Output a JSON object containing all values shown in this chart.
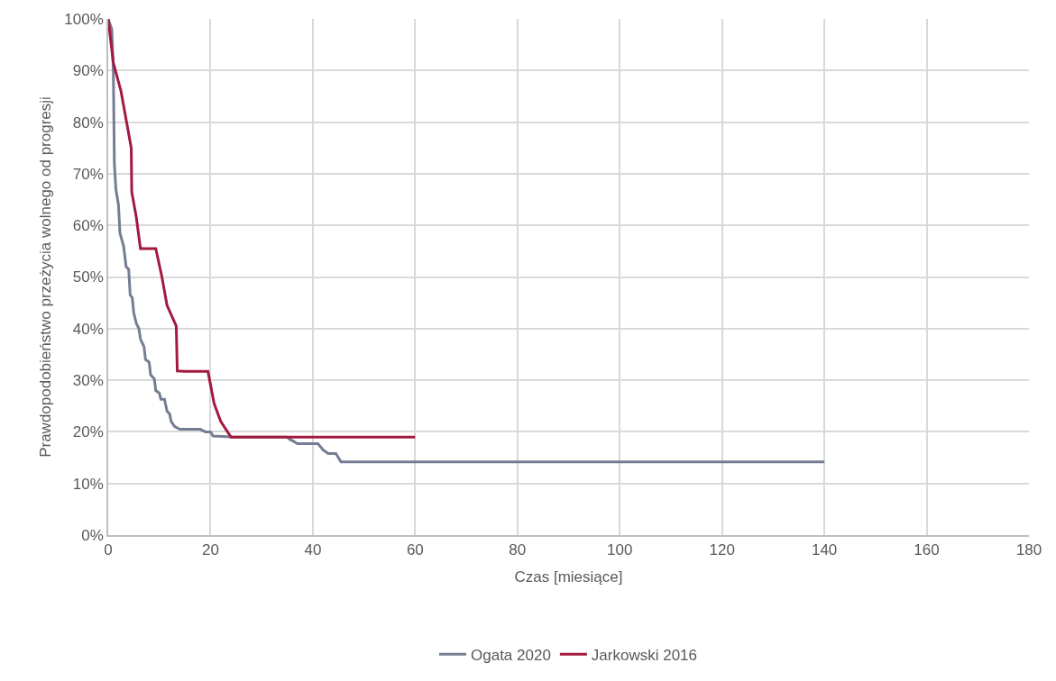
{
  "chart_data": {
    "type": "line",
    "xlabel": "Czas [miesiące]",
    "ylabel": "Prawdopodobieństwo przeżycia wolnego od progresji",
    "xlim": [
      0,
      180
    ],
    "xticks": [
      0,
      20,
      40,
      60,
      80,
      100,
      120,
      140,
      160,
      180
    ],
    "ylim": [
      0,
      100
    ],
    "yticks": [
      {
        "value": 0,
        "label": "0%"
      },
      {
        "value": 10,
        "label": "10%"
      },
      {
        "value": 20,
        "label": "20%"
      },
      {
        "value": 30,
        "label": "30%"
      },
      {
        "value": 40,
        "label": "40%"
      },
      {
        "value": 50,
        "label": "50%"
      },
      {
        "value": 60,
        "label": "60%"
      },
      {
        "value": 70,
        "label": "70%"
      },
      {
        "value": 80,
        "label": "80%"
      },
      {
        "value": 90,
        "label": "90%"
      },
      {
        "value": 100,
        "label": "100%"
      }
    ],
    "grid": true,
    "legend": "bottom",
    "marker": "none",
    "line_style": "solid",
    "series": [
      {
        "name": "Ogata 2020",
        "color": "#747d94",
        "x": [
          0,
          0.7,
          1,
          1.2,
          1.5,
          2,
          2.3,
          3,
          3.5,
          4,
          4.3,
          4.7,
          5,
          5.5,
          6,
          6.3,
          7,
          7.3,
          8,
          8.3,
          9,
          9.3,
          10,
          10.3,
          11,
          11.5,
          12,
          12.3,
          13,
          14,
          18,
          19,
          20,
          20.5,
          24,
          35,
          35.5,
          36,
          37,
          41,
          42,
          43,
          44.5,
          45.5,
          140
        ],
        "values": [
          100,
          98,
          90,
          72,
          67,
          64,
          58.5,
          56,
          52,
          51.5,
          46.5,
          46,
          43,
          41,
          40,
          38,
          36.5,
          34,
          33.5,
          31,
          30.3,
          28,
          27.5,
          26.3,
          26.3,
          24,
          23.5,
          22,
          21,
          20.5,
          20.5,
          20,
          20,
          19.2,
          19,
          19,
          18.5,
          18.3,
          17.7,
          17.7,
          16.5,
          15.8,
          15.8,
          14.2,
          14.2
        ]
      },
      {
        "name": "Jarkowski 2016",
        "color": "#a31a3f",
        "x": [
          0,
          1,
          2.5,
          4.5,
          4.6,
          5.5,
          6.3,
          9.3,
          10.5,
          11.5,
          13.3,
          13.5,
          15,
          19.5,
          20.7,
          22,
          24,
          60
        ],
        "values": [
          100,
          91.5,
          86,
          75,
          66.5,
          61.5,
          55.5,
          55.5,
          50,
          44.5,
          40.5,
          31.8,
          31.7,
          31.7,
          25.5,
          22,
          19,
          19
        ]
      }
    ]
  }
}
